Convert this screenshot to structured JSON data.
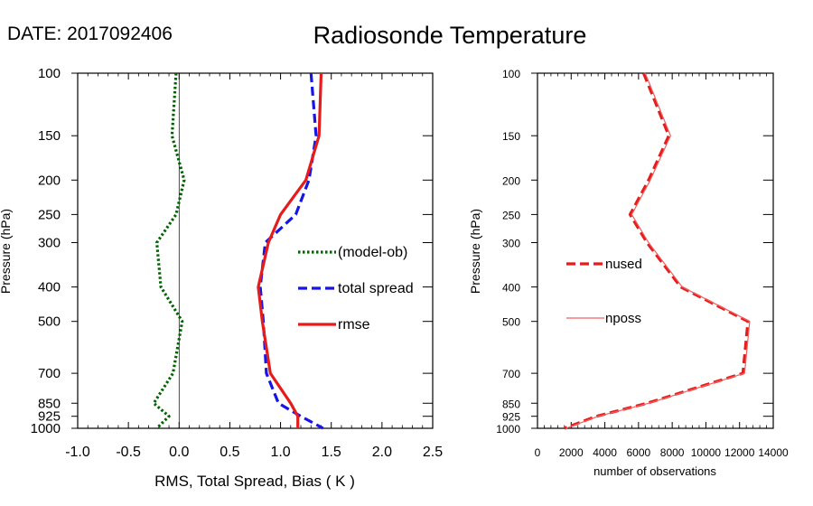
{
  "header": {
    "date_text": "DATE: 2017092406",
    "title": "Radiosonde Temperature"
  },
  "chart_data": [
    {
      "type": "line",
      "panel": "left",
      "title": "Radiosonde Temperature",
      "xlabel": "RMS, Total Spread, Bias ( K )",
      "ylabel": "Pressure (hPa)",
      "xlim": [
        -1.0,
        2.5
      ],
      "ylim": [
        1000,
        100
      ],
      "yscale": "log",
      "x_ticks": [
        -1.0,
        -0.5,
        0.0,
        0.5,
        1.0,
        1.5,
        2.0,
        2.5
      ],
      "x_tick_labels": [
        "-1.0",
        "-0.5",
        "0.0",
        "0.5",
        "1.0",
        "1.5",
        "2.0",
        "2.5"
      ],
      "y_ticks": [
        100,
        150,
        200,
        250,
        300,
        400,
        500,
        700,
        850,
        925,
        1000
      ],
      "y_tick_labels": [
        "100",
        "150",
        "200",
        "250",
        "300",
        "400",
        "500",
        "700",
        "850",
        "925",
        "1000"
      ],
      "zero_line": 0.0,
      "legend_position": "right",
      "series": [
        {
          "name": "(model-ob)",
          "color": "#006400",
          "style": "dotted",
          "points": [
            [
              -0.03,
              100
            ],
            [
              -0.07,
              150
            ],
            [
              0.05,
              200
            ],
            [
              -0.03,
              250
            ],
            [
              -0.22,
              300
            ],
            [
              -0.18,
              400
            ],
            [
              0.03,
              500
            ],
            [
              -0.06,
              700
            ],
            [
              -0.25,
              850
            ],
            [
              -0.1,
              925
            ],
            [
              -0.22,
              1000
            ]
          ]
        },
        {
          "name": "total spread",
          "color": "#1515e6",
          "style": "dashed",
          "points": [
            [
              1.3,
              100
            ],
            [
              1.35,
              150
            ],
            [
              1.28,
              200
            ],
            [
              1.15,
              250
            ],
            [
              0.85,
              300
            ],
            [
              0.8,
              400
            ],
            [
              0.83,
              500
            ],
            [
              0.86,
              700
            ],
            [
              0.98,
              850
            ],
            [
              1.2,
              925
            ],
            [
              1.42,
              1000
            ]
          ]
        },
        {
          "name": "rmse",
          "color": "#e61b1b",
          "style": "solid",
          "points": [
            [
              1.4,
              100
            ],
            [
              1.38,
              150
            ],
            [
              1.25,
              200
            ],
            [
              1.0,
              250
            ],
            [
              0.88,
              300
            ],
            [
              0.78,
              400
            ],
            [
              0.82,
              500
            ],
            [
              0.9,
              700
            ],
            [
              1.1,
              850
            ],
            [
              1.17,
              925
            ],
            [
              1.17,
              1000
            ]
          ]
        }
      ]
    },
    {
      "type": "line",
      "panel": "right",
      "xlabel": "number of observations",
      "ylabel": "Pressure (hPa)",
      "xlim": [
        0,
        14000
      ],
      "ylim": [
        1000,
        100
      ],
      "yscale": "log",
      "x_ticks": [
        0,
        2000,
        4000,
        6000,
        8000,
        10000,
        12000,
        14000
      ],
      "x_tick_labels": [
        "0",
        "2000",
        "4000",
        "6000",
        "8000",
        "10000",
        "12000",
        "14000"
      ],
      "y_ticks": [
        100,
        150,
        200,
        250,
        300,
        400,
        500,
        700,
        850,
        925,
        1000
      ],
      "y_tick_labels": [
        "100",
        "150",
        "200",
        "250",
        "300",
        "400",
        "500",
        "700",
        "850",
        "925",
        "1000"
      ],
      "legend_position": "left",
      "series": [
        {
          "name": "nused",
          "color": "#e61b1b",
          "style": "dashed",
          "points": [
            [
              6300,
              100
            ],
            [
              7800,
              150
            ],
            [
              6600,
              200
            ],
            [
              5500,
              250
            ],
            [
              6500,
              300
            ],
            [
              8500,
              400
            ],
            [
              12500,
              500
            ],
            [
              12200,
              700
            ],
            [
              6500,
              850
            ],
            [
              3500,
              925
            ],
            [
              1600,
              1000
            ]
          ]
        },
        {
          "name": "nposs",
          "color": "#f06060",
          "style": "solid",
          "points": [
            [
              6400,
              100
            ],
            [
              7900,
              150
            ],
            [
              6700,
              200
            ],
            [
              5600,
              250
            ],
            [
              6600,
              300
            ],
            [
              8600,
              400
            ],
            [
              12600,
              500
            ],
            [
              12300,
              700
            ],
            [
              6600,
              850
            ],
            [
              3600,
              925
            ],
            [
              1700,
              1000
            ]
          ]
        }
      ]
    }
  ]
}
